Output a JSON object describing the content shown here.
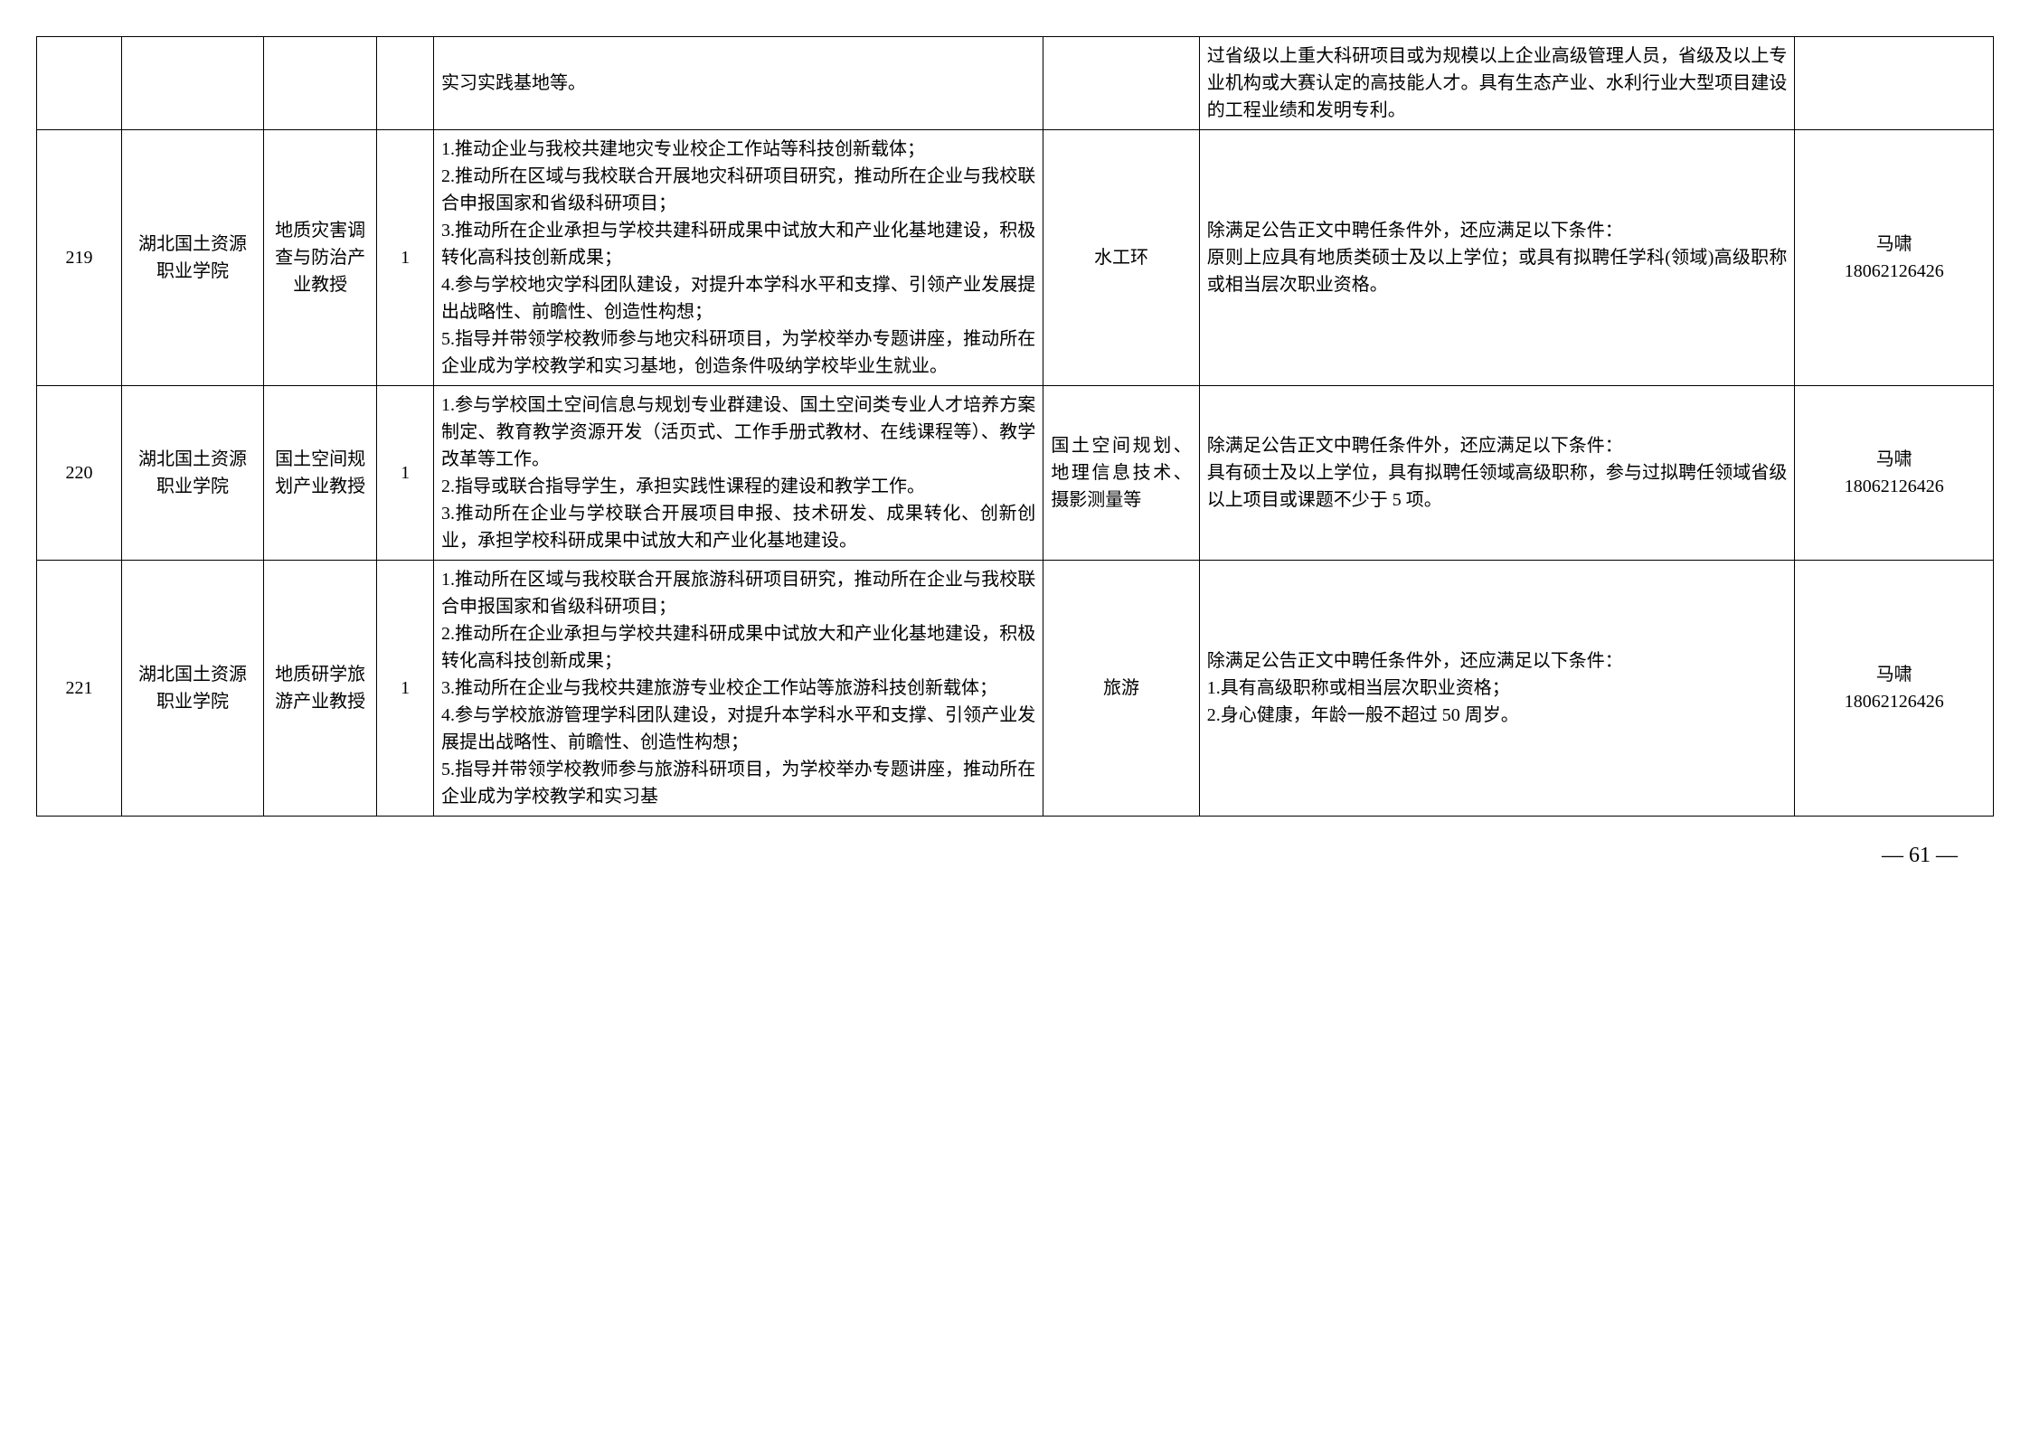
{
  "table": {
    "rows": [
      {
        "seq": "",
        "unit": "",
        "position": "",
        "count": "",
        "duties": "实习实践基地等。",
        "major": "",
        "requirements": "过省级以上重大科研项目或为规模以上企业高级管理人员，省级及以上专业机构或大赛认定的高技能人才。具有生态产业、水利行业大型项目建设的工程业绩和发明专利。",
        "contact": ""
      },
      {
        "seq": "219",
        "unit": "湖北国土资源职业学院",
        "position": "地质灾害调查与防治产业教授",
        "count": "1",
        "duties": "1.推动企业与我校共建地灾专业校企工作站等科技创新载体；\n2.推动所在区域与我校联合开展地灾科研项目研究，推动所在企业与我校联合申报国家和省级科研项目；\n3.推动所在企业承担与学校共建科研成果中试放大和产业化基地建设，积极转化高科技创新成果；\n4.参与学校地灾学科团队建设，对提升本学科水平和支撑、引领产业发展提出战略性、前瞻性、创造性构想；\n5.指导并带领学校教师参与地灾科研项目，为学校举办专题讲座，推动所在企业成为学校教学和实习基地，创造条件吸纳学校毕业生就业。",
        "major": "水工环",
        "major_center": true,
        "requirements": "除满足公告正文中聘任条件外，还应满足以下条件：\n原则上应具有地质类硕士及以上学位；或具有拟聘任学科(领域)高级职称或相当层次职业资格。",
        "contact": "马啸\n18062126426"
      },
      {
        "seq": "220",
        "unit": "湖北国土资源职业学院",
        "position": "国土空间规划产业教授",
        "count": "1",
        "duties": "1.参与学校国土空间信息与规划专业群建设、国土空间类专业人才培养方案制定、教育教学资源开发（活页式、工作手册式教材、在线课程等）、教学改革等工作。\n2.指导或联合指导学生，承担实践性课程的建设和教学工作。\n3.推动所在企业与学校联合开展项目申报、技术研发、成果转化、创新创业，承担学校科研成果中试放大和产业化基地建设。",
        "major": "国土空间规划、地理信息技术、摄影测量等",
        "requirements": "除满足公告正文中聘任条件外，还应满足以下条件：\n具有硕士及以上学位，具有拟聘任领域高级职称，参与过拟聘任领域省级以上项目或课题不少于 5 项。",
        "contact": "马啸\n18062126426"
      },
      {
        "seq": "221",
        "unit": "湖北国土资源职业学院",
        "position": "地质研学旅游产业教授",
        "count": "1",
        "duties": "1.推动所在区域与我校联合开展旅游科研项目研究，推动所在企业与我校联合申报国家和省级科研项目；\n2.推动所在企业承担与学校共建科研成果中试放大和产业化基地建设，积极转化高科技创新成果；\n3.推动所在企业与我校共建旅游专业校企工作站等旅游科技创新载体；\n4.参与学校旅游管理学科团队建设，对提升本学科水平和支撑、引领产业发展提出战略性、前瞻性、创造性构想；\n5.指导并带领学校教师参与旅游科研项目，为学校举办专题讲座，推动所在企业成为学校教学和实习基",
        "major": "旅游",
        "major_center": true,
        "requirements": "除满足公告正文中聘任条件外，还应满足以下条件：\n1.具有高级职称或相当层次职业资格；\n2.身心健康，年龄一般不超过 50 周岁。",
        "contact": "马啸\n18062126426"
      }
    ]
  },
  "page_number": "— 61 —",
  "styling": {
    "border_color": "#000000",
    "text_color": "#000000",
    "background_color": "#ffffff",
    "font_size": 20,
    "line_height": 1.5
  }
}
